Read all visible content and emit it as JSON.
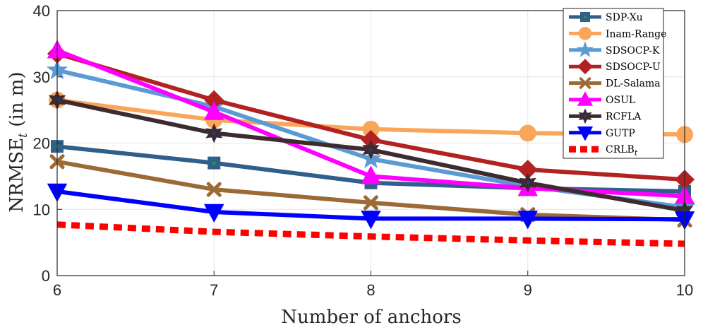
{
  "chart_data": {
    "type": "line",
    "title": "",
    "xlabel": "Number of anchors",
    "ylabel_main": "NRMSE",
    "ylabel_sub": "t",
    "ylabel_suffix": " (in m)",
    "x": [
      6,
      7,
      8,
      9,
      10
    ],
    "xlim": [
      6,
      10
    ],
    "ylim": [
      0,
      40
    ],
    "xticks": [
      "6",
      "7",
      "8",
      "9",
      "10"
    ],
    "yticks": [
      "0",
      "10",
      "20",
      "30",
      "40"
    ],
    "grid": true,
    "legend_position": "top-right",
    "series": [
      {
        "name": "SDP-Xu",
        "color": "#2F5F8A",
        "marker": "square",
        "dashed": false,
        "values": [
          19.5,
          17.0,
          14.0,
          13.2,
          12.7
        ]
      },
      {
        "name": "Inam-Range",
        "color": "#F9A65A",
        "marker": "circle",
        "dashed": false,
        "values": [
          26.5,
          23.5,
          22.1,
          21.5,
          21.3
        ]
      },
      {
        "name": "SDSOCP-K",
        "color": "#5B9BD5",
        "marker": "star",
        "dashed": false,
        "values": [
          31.0,
          25.5,
          17.6,
          13.5,
          10.3
        ]
      },
      {
        "name": "SDSOCP-U",
        "color": "#B22222",
        "marker": "diamond",
        "dashed": false,
        "values": [
          33.5,
          26.5,
          20.5,
          16.0,
          14.5
        ]
      },
      {
        "name": "DL-Salama",
        "color": "#9C6A35",
        "marker": "x",
        "dashed": false,
        "values": [
          17.2,
          13.0,
          11.0,
          9.2,
          8.4
        ]
      },
      {
        "name": "OSUL",
        "color": "#FF00FF",
        "marker": "triangle-up",
        "dashed": false,
        "values": [
          34.0,
          24.7,
          15.0,
          13.2,
          12.0
        ]
      },
      {
        "name": "RCFLA",
        "color": "#3D2B2F",
        "marker": "hexagram",
        "dashed": false,
        "values": [
          26.5,
          21.5,
          19.0,
          14.0,
          9.8
        ]
      },
      {
        "name": "GUTP",
        "color": "#0000FF",
        "marker": "triangle-down",
        "dashed": false,
        "values": [
          12.7,
          9.6,
          8.6,
          8.6,
          8.5
        ]
      },
      {
        "name": "CRLB",
        "name_sub": "t",
        "color": "#FF0000",
        "marker": "none",
        "dashed": true,
        "values": [
          7.7,
          6.6,
          5.9,
          5.3,
          4.8
        ]
      }
    ]
  }
}
